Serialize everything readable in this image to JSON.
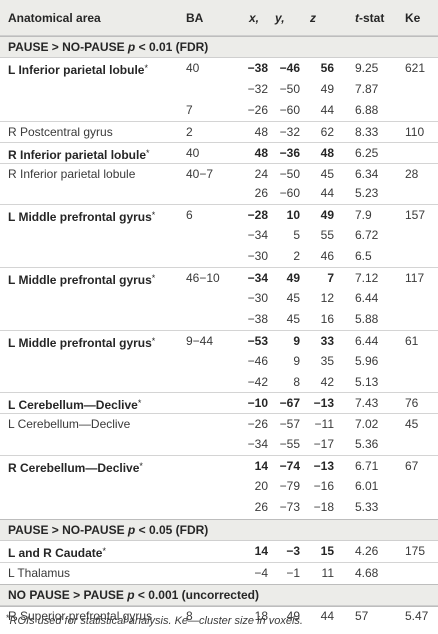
{
  "header": {
    "area": "Anatomical area",
    "ba": "BA",
    "x": "x,",
    "y": "y,",
    "z": "z",
    "tstat_pre": "t",
    "tstat_post": "-stat",
    "ke": "Ke"
  },
  "sections": [
    {
      "title": "PAUSE > NO-PAUSE p < 0.01 (FDR)"
    },
    {
      "title": "PAUSE > NO-PAUSE p < 0.05 (FDR)"
    },
    {
      "title": "NO PAUSE > PAUSE p < 0.001 (uncorrected)"
    }
  ],
  "rows": [
    {
      "area": "L Inferior parietal lobule*",
      "ba": "40",
      "x": "−38",
      "y": "−46",
      "z": "56",
      "t": "9.25",
      "ke": "621",
      "bold": true
    },
    {
      "area": "",
      "ba": "",
      "x": "−32",
      "y": "−50",
      "z": "49",
      "t": "7.87",
      "ke": ""
    },
    {
      "area": "",
      "ba": "7",
      "x": "−26",
      "y": "−60",
      "z": "44",
      "t": "6.88",
      "ke": ""
    },
    {
      "area": "R Postcentral gyrus",
      "ba": "2",
      "x": "48",
      "y": "−32",
      "z": "62",
      "t": "8.33",
      "ke": "110"
    },
    {
      "area": "R Inferior parietal lobule*",
      "ba": "40",
      "x": "48",
      "y": "−36",
      "z": "48",
      "t": "6.25",
      "ke": "",
      "bold": true
    },
    {
      "area": "R Inferior parietal lobule",
      "ba": "40−7",
      "x": "24",
      "y": "−50",
      "z": "45",
      "t": "6.34",
      "ke": "28"
    },
    {
      "area": "",
      "ba": "",
      "x": "26",
      "y": "−60",
      "z": "44",
      "t": "5.23",
      "ke": ""
    },
    {
      "area": "L Middle prefrontal gyrus*",
      "ba": "6",
      "x": "−28",
      "y": "10",
      "z": "49",
      "t": "7.9",
      "ke": "157",
      "bold": true
    },
    {
      "area": "",
      "ba": "",
      "x": "−34",
      "y": "5",
      "z": "55",
      "t": "6.72",
      "ke": ""
    },
    {
      "area": "",
      "ba": "",
      "x": "−30",
      "y": "2",
      "z": "46",
      "t": "6.5",
      "ke": ""
    },
    {
      "area": "L Middle prefrontal gyrus*",
      "ba": "46−10",
      "x": "−34",
      "y": "49",
      "z": "7",
      "t": "7.12",
      "ke": "117",
      "bold": true
    },
    {
      "area": "",
      "ba": "",
      "x": "−30",
      "y": "45",
      "z": "12",
      "t": "6.44",
      "ke": ""
    },
    {
      "area": "",
      "ba": "",
      "x": "−38",
      "y": "45",
      "z": "16",
      "t": "5.88",
      "ke": ""
    },
    {
      "area": "L Middle prefrontal gyrus*",
      "ba": "9−44",
      "x": "−53",
      "y": "9",
      "z": "33",
      "t": "6.44",
      "ke": "61",
      "bold": true
    },
    {
      "area": "",
      "ba": "",
      "x": "−46",
      "y": "9",
      "z": "35",
      "t": "5.96",
      "ke": ""
    },
    {
      "area": "",
      "ba": "",
      "x": "−42",
      "y": "8",
      "z": "42",
      "t": "5.13",
      "ke": ""
    },
    {
      "area": "L Cerebellum—Declive*",
      "ba": "",
      "x": "−10",
      "y": "−67",
      "z": "−13",
      "t": "7.43",
      "ke": "76",
      "bold": true
    },
    {
      "area": "L Cerebellum—Declive",
      "ba": "",
      "x": "−26",
      "y": "−57",
      "z": "−11",
      "t": "7.02",
      "ke": "45"
    },
    {
      "area": "",
      "ba": "",
      "x": "−34",
      "y": "−55",
      "z": "−17",
      "t": "5.36",
      "ke": ""
    },
    {
      "area": "R Cerebellum—Declive*",
      "ba": "",
      "x": "14",
      "y": "−74",
      "z": "−13",
      "t": "6.71",
      "ke": "67",
      "bold": true
    },
    {
      "area": "",
      "ba": "",
      "x": "20",
      "y": "−79",
      "z": "−16",
      "t": "6.01",
      "ke": ""
    },
    {
      "area": "",
      "ba": "",
      "x": "26",
      "y": "−73",
      "z": "−18",
      "t": "5.33",
      "ke": ""
    },
    {
      "area": "L and R Caudate*",
      "ba": "",
      "x": "14",
      "y": "−3",
      "z": "15",
      "t": "4.26",
      "ke": "175",
      "bold": true
    },
    {
      "area": "L Thalamus",
      "ba": "",
      "x": "−4",
      "y": "−1",
      "z": "11",
      "t": "4.68",
      "ke": ""
    },
    {
      "area": "R Superior prefrontal gyrus",
      "ba": "8",
      "x": "18",
      "y": "49",
      "z": "44",
      "t": "57",
      "ke": "5.47"
    }
  ],
  "footnote": "*ROIs used for statistical analysis. Ke—cluster size in voxels."
}
